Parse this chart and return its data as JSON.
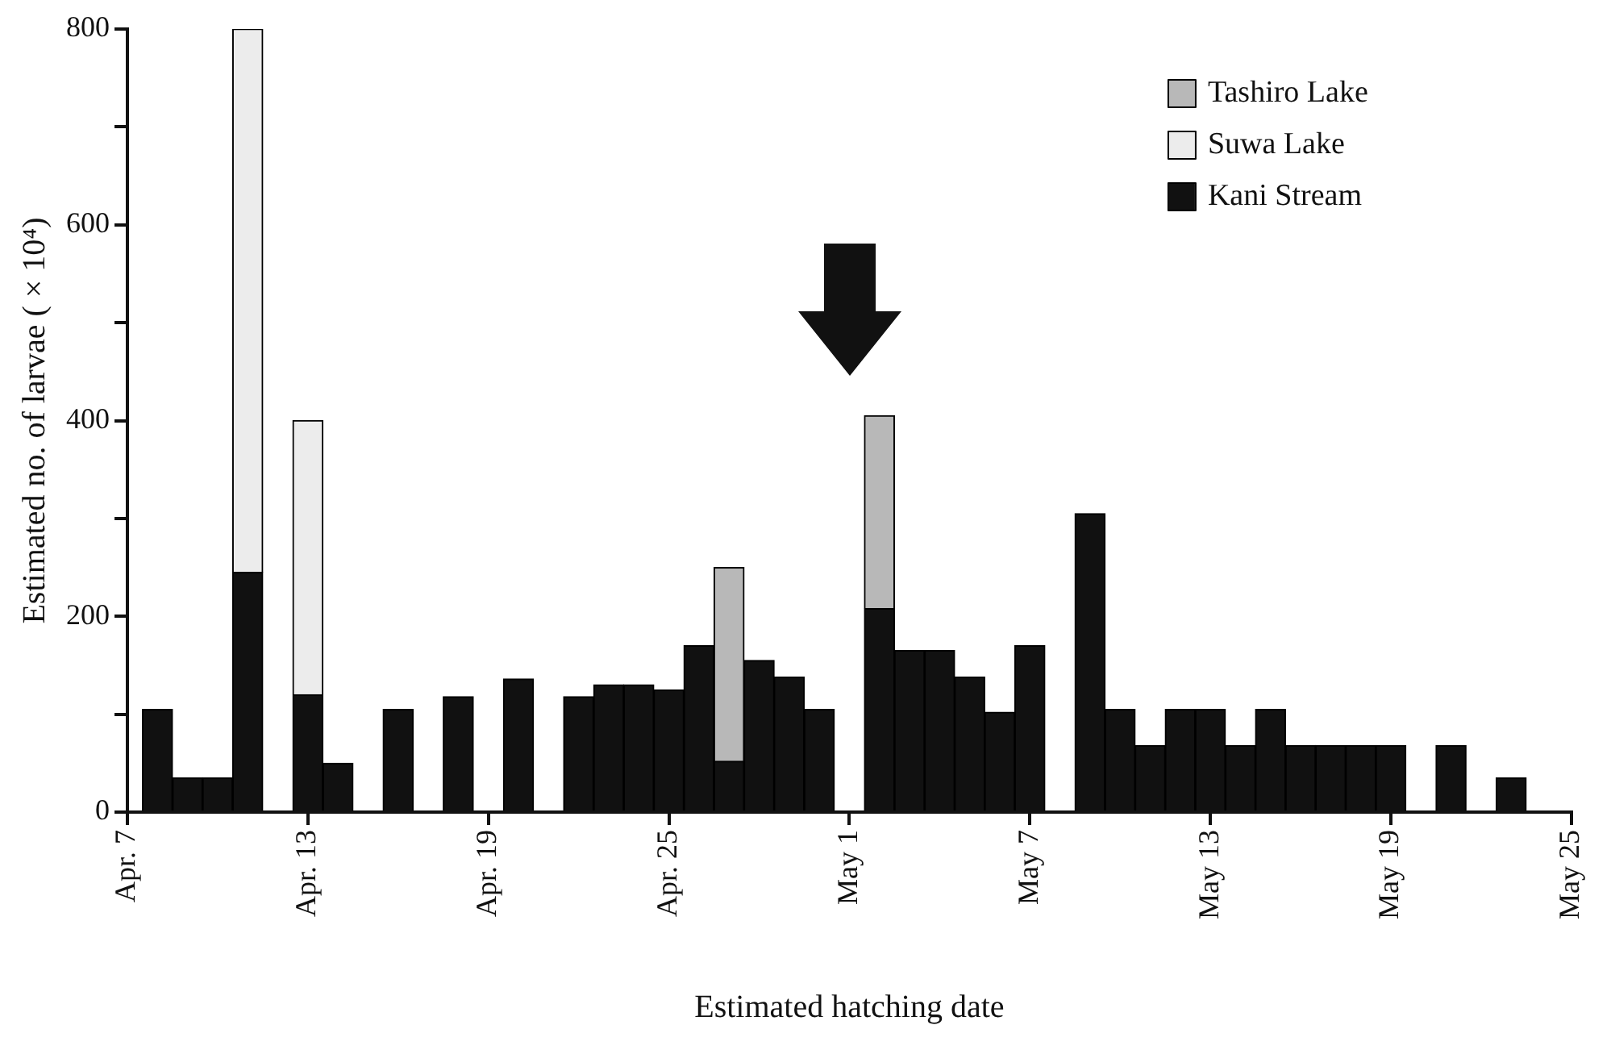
{
  "chart_data": {
    "type": "bar",
    "stacked": true,
    "xlabel": "Estimated hatching date",
    "ylabel": "Estimated no. of larvae ( × 10⁴)",
    "x": [
      "--04-08",
      "--04-09",
      "--04-10",
      "--04-11",
      "--04-13",
      "--04-14",
      "--04-16",
      "--04-18",
      "--04-20",
      "--04-22",
      "--04-23",
      "--04-24",
      "--04-25",
      "--04-26",
      "--04-27",
      "--04-28",
      "--04-29",
      "--04-30",
      "--05-02",
      "--05-03",
      "--05-04",
      "--05-05",
      "--05-06",
      "--05-07",
      "--05-09",
      "--05-10",
      "--05-11",
      "--05-12",
      "--05-13",
      "--05-14",
      "--05-15",
      "--05-16",
      "--05-17",
      "--05-18",
      "--05-19",
      "--05-21",
      "--05-23"
    ],
    "series": [
      {
        "name": "Kani Stream",
        "color": "#111111",
        "values": [
          105,
          35,
          35,
          245,
          120,
          50,
          105,
          118,
          136,
          118,
          130,
          130,
          125,
          170,
          52,
          155,
          138,
          105,
          208,
          165,
          165,
          138,
          102,
          170,
          305,
          105,
          68,
          105,
          105,
          68,
          105,
          68,
          68,
          68,
          68,
          68,
          35
        ]
      },
      {
        "name": "Suwa Lake",
        "color": "#ececec",
        "values": [
          null,
          null,
          null,
          555,
          280,
          null,
          null,
          null,
          null,
          null,
          null,
          null,
          null,
          null,
          null,
          null,
          null,
          null,
          null,
          null,
          null,
          null,
          null,
          null,
          null,
          null,
          null,
          null,
          null,
          null,
          null,
          null,
          null,
          null,
          null,
          null,
          null
        ]
      },
      {
        "name": "Tashiro Lake",
        "color": "#b8b8b8",
        "values": [
          null,
          null,
          null,
          null,
          null,
          null,
          null,
          null,
          null,
          null,
          null,
          null,
          null,
          null,
          198,
          null,
          null,
          null,
          197,
          null,
          null,
          null,
          null,
          null,
          null,
          null,
          null,
          null,
          null,
          null,
          null,
          null,
          null,
          null,
          null,
          null,
          null
        ]
      }
    ],
    "xlim": [
      "--04-07",
      "--05-25"
    ],
    "xticks": [
      {
        "value": "--04-07",
        "label": "Apr. 7"
      },
      {
        "value": "--04-13",
        "label": "Apr. 13"
      },
      {
        "value": "--04-19",
        "label": "Apr. 19"
      },
      {
        "value": "--04-25",
        "label": "Apr. 25"
      },
      {
        "value": "--05-01",
        "label": "May 1"
      },
      {
        "value": "--05-07",
        "label": "May 7"
      },
      {
        "value": "--05-13",
        "label": "May 13"
      },
      {
        "value": "--05-19",
        "label": "May 19"
      },
      {
        "value": "--05-25",
        "label": "May 25"
      }
    ],
    "ylim": [
      0,
      800
    ],
    "yticks": [
      0,
      {
        "value": 100,
        "label": null
      },
      200,
      {
        "value": 300,
        "label": null
      },
      400,
      {
        "value": 500,
        "label": null
      },
      600,
      {
        "value": 700,
        "label": null
      },
      800
    ],
    "grid": false,
    "legend": "top right"
  }
}
